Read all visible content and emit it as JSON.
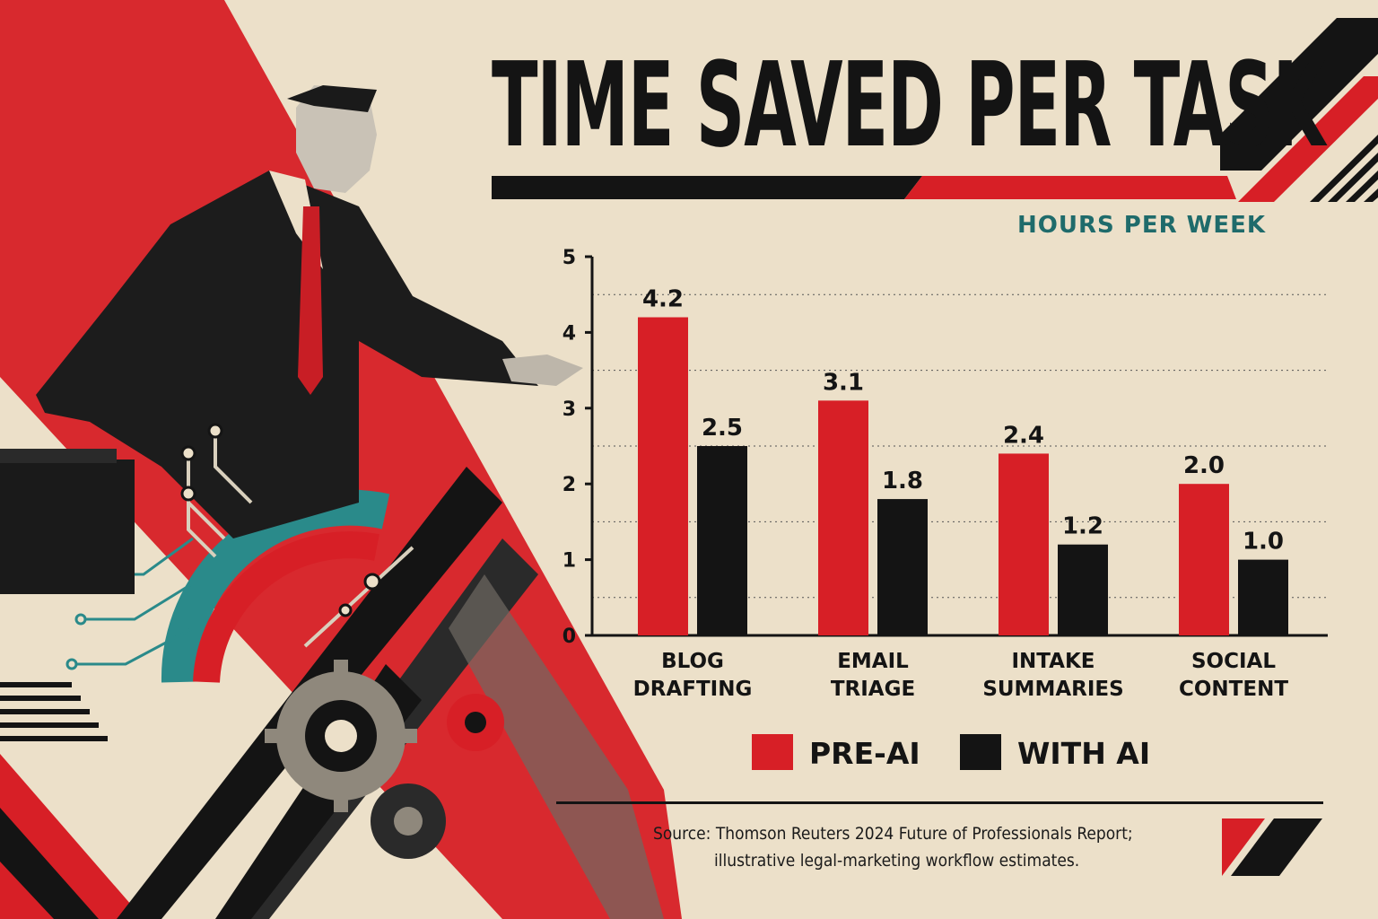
{
  "header": {
    "title": "TIME SAVED PER TASK",
    "unit_label": "HOURS PER WEEK"
  },
  "colors": {
    "background": "#ece0c9",
    "red": "#d71f26",
    "black": "#141414",
    "teal": "#1f6b6b"
  },
  "chart_data": {
    "type": "bar",
    "title": "TIME SAVED PER TASK",
    "ylabel": "HOURS PER WEEK",
    "xlabel": "",
    "ylim": [
      0,
      5
    ],
    "yticks": [
      "0",
      "1",
      "2",
      "3",
      "4",
      "5"
    ],
    "grid": "dotted horizontal",
    "legend": "bottom",
    "categories": [
      [
        "BLOG",
        "DRAFTING"
      ],
      [
        "EMAIL",
        "TRIAGE"
      ],
      [
        "INTAKE",
        "SUMMARIES"
      ],
      [
        "SOCIAL",
        "CONTENT"
      ]
    ],
    "series": [
      {
        "name": "PRE-AI",
        "color": "#d71f26",
        "values": [
          4.2,
          3.1,
          2.4,
          2.0
        ],
        "labels": [
          "4.2",
          "3.1",
          "2.4",
          "2.0"
        ]
      },
      {
        "name": "WITH AI",
        "color": "#141414",
        "values": [
          2.5,
          1.8,
          1.2,
          1.0
        ],
        "labels": [
          "2.5",
          "1.8",
          "1.2",
          "1.0"
        ]
      }
    ]
  },
  "footer": {
    "source_line1": "Source: Thomson Reuters 2024 Future of Professionals Report;",
    "source_line2": "illustrative legal-marketing workflow estimates."
  }
}
